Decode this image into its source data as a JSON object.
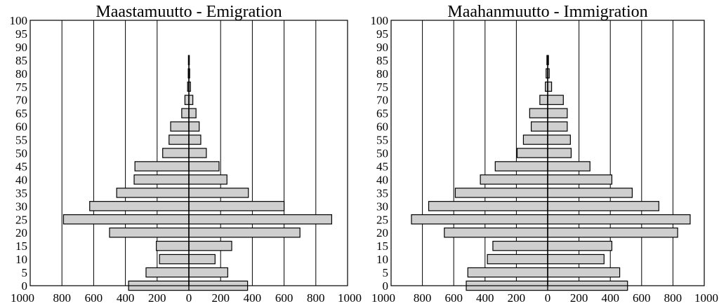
{
  "chart_data": [
    {
      "type": "bar",
      "orientation": "horizontal-pyramid",
      "title": "Maastamuutto - Emigration",
      "age_groups": [
        "0",
        "5",
        "10",
        "15",
        "20",
        "25",
        "30",
        "35",
        "40",
        "45",
        "50",
        "55",
        "60",
        "65",
        "70",
        "75",
        "80",
        "85"
      ],
      "series": [
        {
          "name": "left",
          "values": [
            380,
            270,
            185,
            205,
            500,
            790,
            625,
            455,
            345,
            340,
            165,
            125,
            115,
            45,
            25,
            8,
            4,
            3
          ]
        },
        {
          "name": "right",
          "values": [
            370,
            245,
            165,
            270,
            700,
            900,
            600,
            375,
            240,
            190,
            110,
            75,
            65,
            45,
            25,
            10,
            5,
            3
          ]
        }
      ],
      "ytick_labels": [
        "0",
        "5",
        "10",
        "15",
        "20",
        "25",
        "30",
        "35",
        "40",
        "45",
        "50",
        "55",
        "60",
        "65",
        "70",
        "75",
        "80",
        "85",
        "90",
        "95",
        "100"
      ],
      "xtick_labels_left": [
        "1000",
        "800",
        "600",
        "400",
        "200",
        "0"
      ],
      "xtick_labels_right": [
        "200",
        "400",
        "600",
        "800",
        "1000"
      ],
      "xlim": [
        -1000,
        1000
      ],
      "ylim": [
        0,
        100
      ]
    },
    {
      "type": "bar",
      "orientation": "horizontal-pyramid",
      "title": "Maahanmuutto - Immigration",
      "age_groups": [
        "0",
        "5",
        "10",
        "15",
        "20",
        "25",
        "30",
        "35",
        "40",
        "45",
        "50",
        "55",
        "60",
        "65",
        "70",
        "75",
        "80",
        "85"
      ],
      "series": [
        {
          "name": "left",
          "values": [
            520,
            510,
            385,
            350,
            660,
            870,
            760,
            590,
            430,
            335,
            195,
            155,
            105,
            115,
            50,
            15,
            10,
            5
          ]
        },
        {
          "name": "right",
          "values": [
            510,
            460,
            360,
            410,
            830,
            910,
            710,
            540,
            410,
            270,
            150,
            145,
            125,
            125,
            100,
            25,
            10,
            5
          ]
        }
      ],
      "ytick_labels": [
        "0",
        "5",
        "10",
        "15",
        "20",
        "25",
        "30",
        "35",
        "40",
        "45",
        "50",
        "55",
        "60",
        "65",
        "70",
        "75",
        "80",
        "85",
        "90",
        "95",
        "100"
      ],
      "xtick_labels_left": [
        "1000",
        "800",
        "600",
        "400",
        "200",
        "0"
      ],
      "xtick_labels_right": [
        "200",
        "400",
        "600",
        "800",
        "1000"
      ],
      "xlim": [
        -1000,
        1000
      ],
      "ylim": [
        0,
        100
      ]
    }
  ]
}
